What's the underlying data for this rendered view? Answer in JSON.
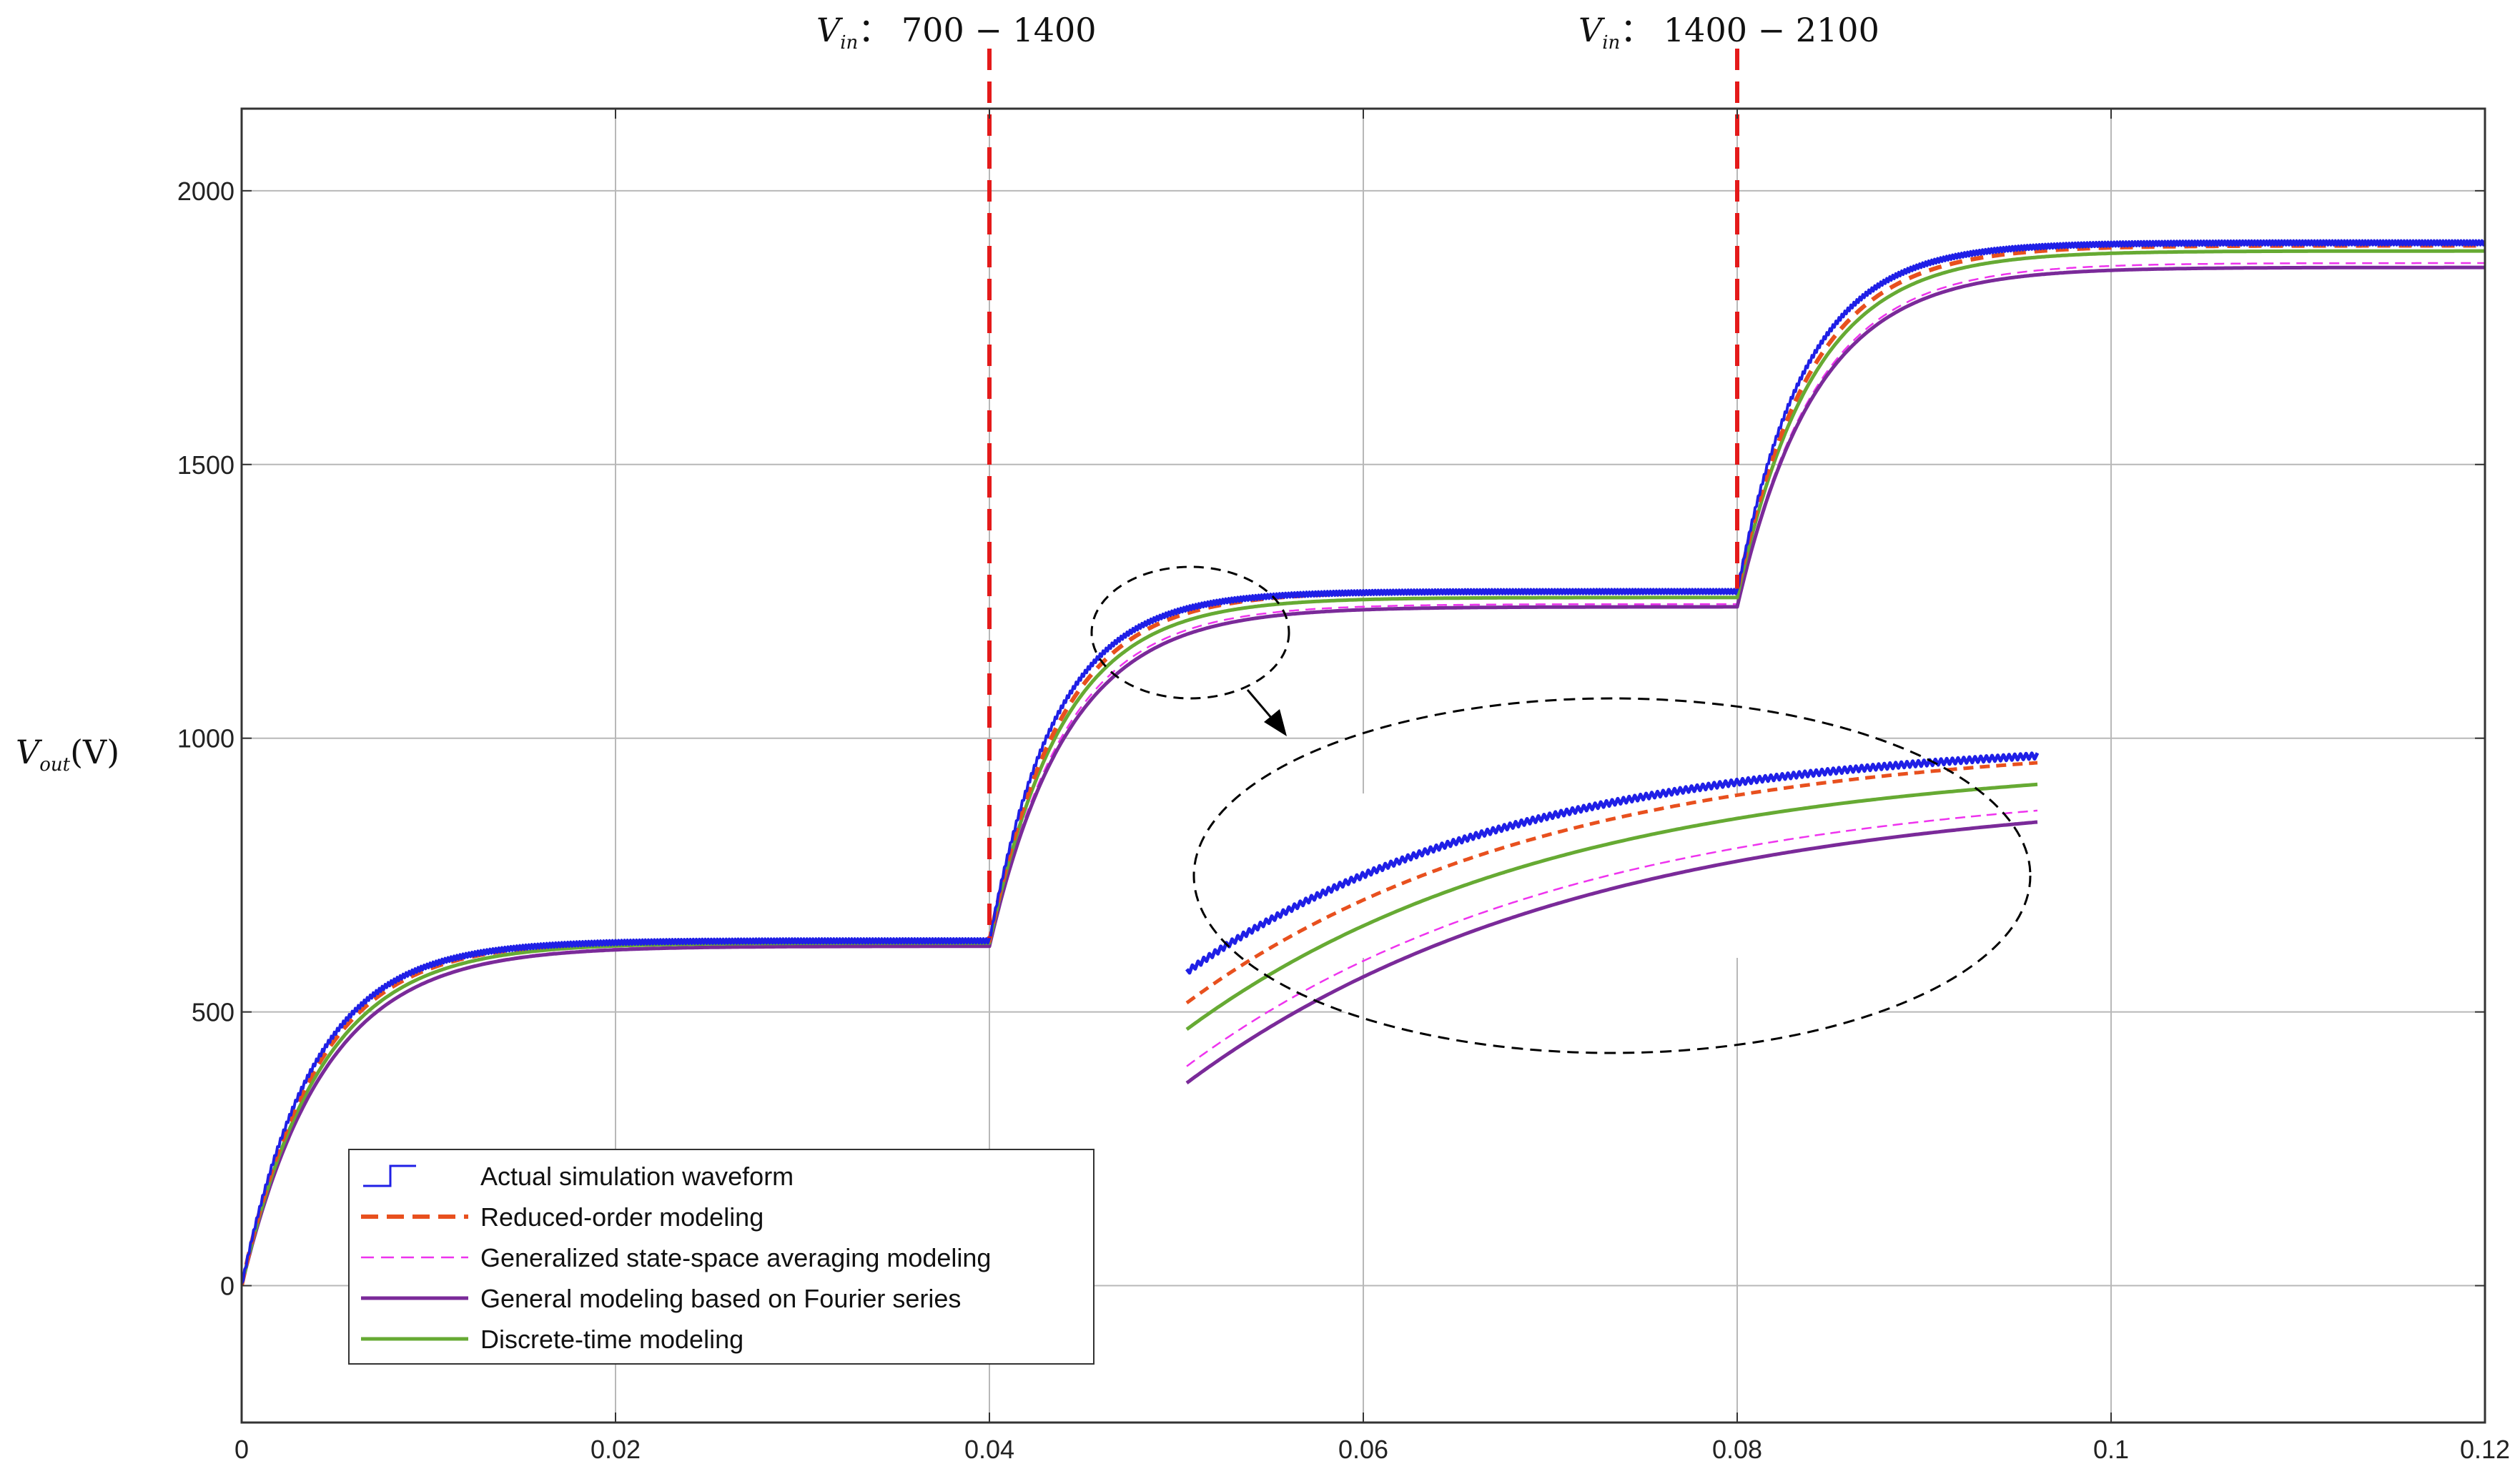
{
  "chart_data": {
    "type": "line",
    "title": "",
    "xlabel": "",
    "ylabel": {
      "symbol": "V",
      "subscript": "out",
      "unit": "(V)"
    },
    "xlim": [
      0,
      0.12
    ],
    "ylim": [
      -250,
      2150
    ],
    "xticks": [
      0,
      0.02,
      0.04,
      0.06,
      0.08,
      0.1,
      0.12
    ],
    "xtick_labels": [
      "0",
      "0.02",
      "0.04",
      "0.06",
      "0.08",
      "0.1",
      "0.12"
    ],
    "yticks": [
      0,
      500,
      1000,
      1500,
      2000
    ],
    "ytick_labels": [
      "0",
      "500",
      "1000",
      "1500",
      "2000"
    ],
    "grid": true,
    "legend_position": "bottom-left",
    "step_times": [
      0.04,
      0.08
    ],
    "step_annotations": [
      {
        "x": 0.04,
        "symbol": "V",
        "subscript": "in",
        "text": "：  700 − 1400"
      },
      {
        "x": 0.08,
        "symbol": "V",
        "subscript": "in",
        "text": "：  1400 − 2100"
      }
    ],
    "series": [
      {
        "name": "Actual simulation waveform",
        "color": "#1f1fe6",
        "style": "solid-ripple",
        "stages": [
          {
            "t0": 0,
            "v0": 0,
            "vf": 630,
            "tau": 0.0038
          },
          {
            "t0": 0.04,
            "vf": 1268,
            "tau": 0.0035
          },
          {
            "t0": 0.08,
            "vf": 1905,
            "tau": 0.0036
          }
        ]
      },
      {
        "name": "Reduced-order modeling",
        "color": "#e8501e",
        "style": "thick-dash",
        "stages": [
          {
            "t0": 0,
            "v0": 0,
            "vf": 630,
            "tau": 0.004
          },
          {
            "t0": 0.04,
            "vf": 1268,
            "tau": 0.0038
          },
          {
            "t0": 0.08,
            "vf": 1900,
            "tau": 0.0039
          }
        ]
      },
      {
        "name": "Generalized state-space averaging modeling",
        "color": "#ee33ee",
        "style": "thin-dash",
        "stages": [
          {
            "t0": 0,
            "v0": 0,
            "vf": 622,
            "tau": 0.0044
          },
          {
            "t0": 0.04,
            "vf": 1245,
            "tau": 0.0041
          },
          {
            "t0": 0.08,
            "vf": 1868,
            "tau": 0.0042
          }
        ]
      },
      {
        "name": "General modeling based on Fourier series",
        "color": "#7a2a99",
        "style": "solid",
        "stages": [
          {
            "t0": 0,
            "v0": 0,
            "vf": 620,
            "tau": 0.0044
          },
          {
            "t0": 0.04,
            "vf": 1240,
            "tau": 0.0042
          },
          {
            "t0": 0.08,
            "vf": 1860,
            "tau": 0.0042
          }
        ]
      },
      {
        "name": "Discrete-time modeling",
        "color": "#66aa33",
        "style": "solid",
        "stages": [
          {
            "t0": 0,
            "v0": 0,
            "vf": 626,
            "tau": 0.0042
          },
          {
            "t0": 0.04,
            "vf": 1257,
            "tau": 0.0039
          },
          {
            "t0": 0.08,
            "vf": 1890,
            "tau": 0.004
          }
        ]
      }
    ],
    "inset": {
      "xlim": [
        0.0455,
        0.0545
      ],
      "ylim": [
        1105,
        1275
      ],
      "highlight_center": [
        0.0483,
        1190
      ]
    }
  }
}
